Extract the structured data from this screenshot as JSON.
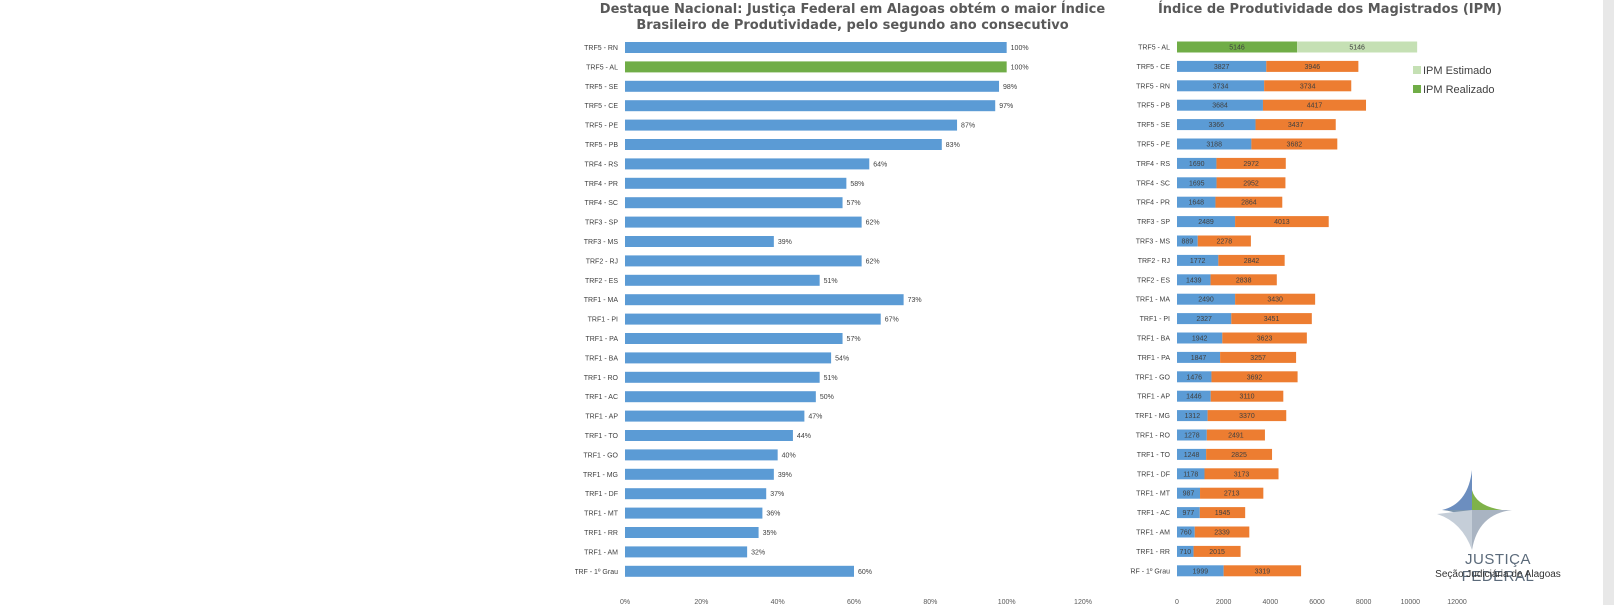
{
  "chart_data": [
    {
      "type": "bar",
      "orientation": "horizontal",
      "title": "Destaque Nacional: Justiça Federal em Alagoas obtém o maior Índice Brasileiro de Produtividade, pelo segundo ano consecutivo",
      "categories": [
        "TRF5 - RN",
        "TRF5 - AL",
        "TRF5 - SE",
        "TRF5 - CE",
        "TRF5 - PE",
        "TRF5 - PB",
        "TRF4 - RS",
        "TRF4 - PR",
        "TRF4 - SC",
        "TRF3 - SP",
        "TRF3 - MS",
        "TRF2 - RJ",
        "TRF2 - ES",
        "TRF1 - MA",
        "TRF1 - PI",
        "TRF1 - PA",
        "TRF1 - BA",
        "TRF1 - RO",
        "TRF1 - AC",
        "TRF1 - AP",
        "TRF1 - TO",
        "TRF1 - GO",
        "TRF1 - MG",
        "TRF1 - DF",
        "TRF1 - MT",
        "TRF1 - RR",
        "TRF1 - AM",
        "TRF - 1º Grau"
      ],
      "values": [
        100,
        100,
        98,
        97,
        87,
        83,
        64,
        58,
        57,
        62,
        39,
        62,
        51,
        73,
        67,
        57,
        54,
        51,
        50,
        47,
        44,
        40,
        39,
        37,
        36,
        35,
        32,
        60
      ],
      "value_labels": [
        "100%",
        "100%",
        "98%",
        "97%",
        "87%",
        "83%",
        "64%",
        "58%",
        "57%",
        "62%",
        "39%",
        "62%",
        "51%",
        "73%",
        "67%",
        "57%",
        "54%",
        "51%",
        "50%",
        "47%",
        "44%",
        "40%",
        "39%",
        "37%",
        "36%",
        "35%",
        "32%",
        "60%"
      ],
      "highlight_category": "TRF5 - AL",
      "xlim": [
        0,
        120
      ],
      "xticks": [
        "0%",
        "20%",
        "40%",
        "60%",
        "80%",
        "100%",
        "120%"
      ],
      "colors": {
        "bar": "#5b9bd5",
        "highlight": "#70ad47"
      }
    },
    {
      "type": "bar",
      "orientation": "horizontal",
      "stacked": true,
      "title": "Índice de Produtividade dos Magistrados (IPM)",
      "categories": [
        "TRF5 - AL",
        "TRF5 - CE",
        "TRF5 - RN",
        "TRF5 - PB",
        "TRF5 - SE",
        "TRF5 - PE",
        "TRF4 - RS",
        "TRF4 - SC",
        "TRF4 - PR",
        "TRF3 - SP",
        "TRF3 - MS",
        "TRF2 - RJ",
        "TRF2 - ES",
        "TRF1 - MA",
        "TRF1 - PI",
        "TRF1 - BA",
        "TRF1 - PA",
        "TRF1 - GO",
        "TRF1 - AP",
        "TRF1 - MG",
        "TRF1 - RO",
        "TRF1 - TO",
        "TRF1 - DF",
        "TRF1 - MT",
        "TRF1 - AC",
        "TRF1 - AM",
        "TRF1 - RR",
        "TRF - 1º Grau"
      ],
      "series": [
        {
          "name": "IPM Realizado",
          "values": [
            5146,
            3827,
            3734,
            3684,
            3366,
            3188,
            1690,
            1695,
            1648,
            2489,
            889,
            1772,
            1439,
            2490,
            2327,
            1942,
            1847,
            1476,
            1446,
            1312,
            1278,
            1248,
            1178,
            987,
            977,
            760,
            710,
            1999
          ]
        },
        {
          "name": "IPM Estimado",
          "values": [
            5146,
            3946,
            3734,
            4417,
            3437,
            3682,
            2972,
            2952,
            2864,
            4013,
            2278,
            2842,
            2838,
            3430,
            3451,
            3623,
            3257,
            3692,
            3110,
            3370,
            2491,
            2825,
            3173,
            2713,
            1945,
            2339,
            2015,
            3319
          ]
        }
      ],
      "legend_entries": [
        "IPM Estimado",
        "IPM Realizado"
      ],
      "legend": "top-right",
      "xlim": [
        0,
        12000
      ],
      "xticks": [
        "0",
        "2000",
        "4000",
        "6000",
        "8000",
        "10000",
        "12000"
      ],
      "colors": {
        "realizado": "#5b9bd5",
        "estimado": "#ed7d31",
        "highlight_realizado": "#70ad47",
        "highlight_estimado": "#c5e0b4"
      }
    }
  ],
  "logo": {
    "name": "JUSTIÇA FEDERAL",
    "subtitle": "Seção Judiciária de Alagoas"
  }
}
